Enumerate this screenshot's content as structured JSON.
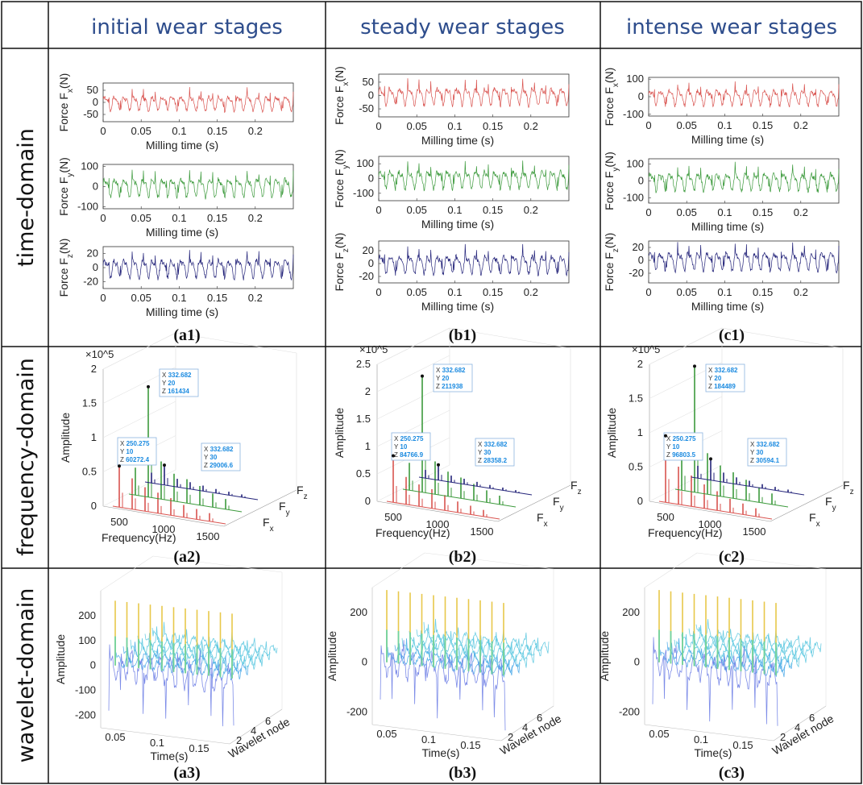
{
  "columns": [
    {
      "id": "a",
      "header": "initial wear stages"
    },
    {
      "id": "b",
      "header": "steady wear stages"
    },
    {
      "id": "c",
      "header": "intense wear stages"
    }
  ],
  "rows": [
    {
      "id": "time",
      "label": "time-domain"
    },
    {
      "id": "freq",
      "label": "frequency-domain"
    },
    {
      "id": "wave",
      "label": "wavelet-domain"
    }
  ],
  "captions": {
    "a1": "(a1)",
    "b1": "(b1)",
    "c1": "(c1)",
    "a2": "(a2)",
    "b2": "(b2)",
    "c2": "(c2)",
    "a3": "(a3)",
    "b3": "(b3)",
    "c3": "(c3)"
  },
  "colors": {
    "fx": "#d9534f",
    "fy": "#3c9a3c",
    "fz": "#24247a",
    "header": "#2e4d8c"
  },
  "chart_data": [
    {
      "panel": "a1",
      "type": "line",
      "xlabel": "Milling time (s)",
      "xlim": [
        0,
        0.25
      ],
      "xticks": [
        "0",
        "0.05",
        "0.1",
        "0.15",
        "0.2"
      ],
      "series": [
        {
          "name": "Force F_x(N)",
          "ylabel": "Force F",
          "sub": "x",
          "ylim": [
            -80,
            80
          ],
          "yticks": [
            "50",
            "0",
            "-50"
          ],
          "amplitude": 55
        },
        {
          "name": "Force F_y(N)",
          "ylabel": "Force F",
          "sub": "y",
          "ylim": [
            -110,
            110
          ],
          "yticks": [
            "100",
            "0",
            "-100"
          ],
          "amplitude": 85
        },
        {
          "name": "Force F_z(N)",
          "ylabel": "Force F",
          "sub": "z",
          "ylim": [
            -30,
            30
          ],
          "yticks": [
            "20",
            "0",
            "-20"
          ],
          "amplitude": 24
        }
      ]
    },
    {
      "panel": "b1",
      "type": "line",
      "xlabel": "Milling time (s)",
      "xlim": [
        0,
        0.25
      ],
      "xticks": [
        "0",
        "0.05",
        "0.1",
        "0.15",
        "0.2"
      ],
      "series": [
        {
          "name": "Force F_x(N)",
          "ylabel": "Force F",
          "sub": "x",
          "ylim": [
            -80,
            80
          ],
          "yticks": [
            "50",
            "0",
            "-50"
          ],
          "amplitude": 60
        },
        {
          "name": "Force F_y(N)",
          "ylabel": "Force F",
          "sub": "y",
          "ylim": [
            -150,
            150
          ],
          "yticks": [
            "100",
            "0",
            "-100"
          ],
          "amplitude": 110
        },
        {
          "name": "Force F_z(N)",
          "ylabel": "Force F",
          "sub": "z",
          "ylim": [
            -30,
            35
          ],
          "yticks": [
            "20",
            "0",
            "-20"
          ],
          "amplitude": 26
        }
      ]
    },
    {
      "panel": "c1",
      "type": "line",
      "xlabel": "Milling time (s)",
      "xlim": [
        0,
        0.25
      ],
      "xticks": [
        "0",
        "0.05",
        "0.1",
        "0.15",
        "0.2"
      ],
      "series": [
        {
          "name": "Force F_x(N)",
          "ylabel": "Force F",
          "sub": "x",
          "ylim": [
            -110,
            110
          ],
          "yticks": [
            "100",
            "0",
            "-100"
          ],
          "amplitude": 80
        },
        {
          "name": "Force F_y(N)",
          "ylabel": "Force F",
          "sub": "y",
          "ylim": [
            -130,
            130
          ],
          "yticks": [
            "100",
            "0",
            "-100"
          ],
          "amplitude": 95
        },
        {
          "name": "Force F_z(N)",
          "ylabel": "Force F",
          "sub": "z",
          "ylim": [
            -35,
            30
          ],
          "yticks": [
            "20",
            "0",
            "-20"
          ],
          "amplitude": 26
        }
      ]
    },
    {
      "panel": "a2",
      "type": "bar",
      "view": "3d",
      "xlabel": "Frequency(Hz)",
      "ylabel": "Amplitude",
      "zlabel": "",
      "yscale": "×10^5",
      "xticks": [
        "500",
        "1000",
        "1500"
      ],
      "yticks": [
        "0",
        "0.5",
        "1",
        "1.5",
        "2"
      ],
      "ylim": [
        0,
        2
      ],
      "zcategories": [
        "Fx",
        "Fy",
        "Fz"
      ],
      "peaks": {
        "Fx": [
          0.6,
          0.45,
          0.35,
          0.3,
          0.25,
          0.18,
          0.15,
          0.12
        ],
        "Fy": [
          0.4,
          1.61,
          0.55,
          0.4,
          0.35,
          0.28,
          0.2,
          0.15
        ],
        "Fz": [
          0.15,
          0.29,
          0.12,
          0.1,
          0.08,
          0.06,
          0.05,
          0.04
        ]
      },
      "datatips": [
        {
          "X": "250.275",
          "Y": "10",
          "Z": "60272.4"
        },
        {
          "X": "332.682",
          "Y": "20",
          "Z": "161434"
        },
        {
          "X": "332.682",
          "Y": "30",
          "Z": "29006.6"
        }
      ]
    },
    {
      "panel": "b2",
      "type": "bar",
      "view": "3d",
      "xlabel": "Frequency(Hz)",
      "ylabel": "Amplitude",
      "zlabel": "",
      "yscale": "×10^5",
      "xticks": [
        "500",
        "1000",
        "1500"
      ],
      "yticks": [
        "0",
        "0.5",
        "1",
        "1.5",
        "2",
        "2.5"
      ],
      "ylim": [
        0,
        2.5
      ],
      "zcategories": [
        "Fx",
        "Fy",
        "Fz"
      ],
      "peaks": {
        "Fx": [
          0.85,
          0.5,
          0.4,
          0.35,
          0.28,
          0.2,
          0.16,
          0.12
        ],
        "Fy": [
          0.5,
          2.12,
          0.6,
          0.45,
          0.38,
          0.3,
          0.22,
          0.16
        ],
        "Fz": [
          0.15,
          0.28,
          0.12,
          0.1,
          0.08,
          0.06,
          0.05,
          0.04
        ]
      },
      "datatips": [
        {
          "X": "250.275",
          "Y": "10",
          "Z": "84766.9"
        },
        {
          "X": "332.682",
          "Y": "20",
          "Z": "211938"
        },
        {
          "X": "332.682",
          "Y": "30",
          "Z": "28358.2"
        }
      ]
    },
    {
      "panel": "c2",
      "type": "bar",
      "view": "3d",
      "xlabel": "Frequency(Hz)",
      "ylabel": "Amplitude",
      "zlabel": "",
      "yscale": "×10^5",
      "xticks": [
        "500",
        "1000",
        "1500"
      ],
      "yticks": [
        "0",
        "0.5",
        "1",
        "1.5",
        "2"
      ],
      "ylim": [
        0,
        2
      ],
      "zcategories": [
        "Fx",
        "Fy",
        "Fz"
      ],
      "peaks": {
        "Fx": [
          0.97,
          0.55,
          0.45,
          0.35,
          0.28,
          0.2,
          0.16,
          0.12
        ],
        "Fy": [
          0.6,
          1.84,
          0.6,
          0.45,
          0.38,
          0.3,
          0.22,
          0.16
        ],
        "Fz": [
          0.18,
          0.31,
          0.14,
          0.1,
          0.08,
          0.06,
          0.05,
          0.04
        ]
      },
      "datatips": [
        {
          "X": "250.275",
          "Y": "10",
          "Z": "96803.5"
        },
        {
          "X": "332.682",
          "Y": "20",
          "Z": "184489"
        },
        {
          "X": "332.682",
          "Y": "30",
          "Z": "30594.1"
        }
      ]
    },
    {
      "panel": "a3",
      "type": "line",
      "view": "3d",
      "xlabel": "Time(s)",
      "ylabel": "Amplitude",
      "zlabel": "Wavelet node",
      "xticks": [
        "0.05",
        "0.1",
        "0.15"
      ],
      "yticks": [
        "200",
        "100",
        "0",
        "-100",
        "-200"
      ],
      "ylim": [
        -250,
        300
      ],
      "zticks": [
        "2",
        "4",
        "6"
      ]
    },
    {
      "panel": "b3",
      "type": "line",
      "view": "3d",
      "xlabel": "Time(s)",
      "ylabel": "Amplitude",
      "zlabel": "Wavelet node",
      "xticks": [
        "0.05",
        "0.1",
        "0.15"
      ],
      "yticks": [
        "200",
        "0",
        "-200"
      ],
      "ylim": [
        -250,
        300
      ],
      "zticks": [
        "2",
        "4",
        "6"
      ]
    },
    {
      "panel": "c3",
      "type": "line",
      "view": "3d",
      "xlabel": "Time(s)",
      "ylabel": "Amplitude",
      "zlabel": "Wavelet node",
      "xticks": [
        "0.05",
        "0.1",
        "0.15"
      ],
      "yticks": [
        "200",
        "0",
        "-200"
      ],
      "ylim": [
        -250,
        300
      ],
      "zticks": [
        "2",
        "4",
        "6"
      ]
    }
  ]
}
